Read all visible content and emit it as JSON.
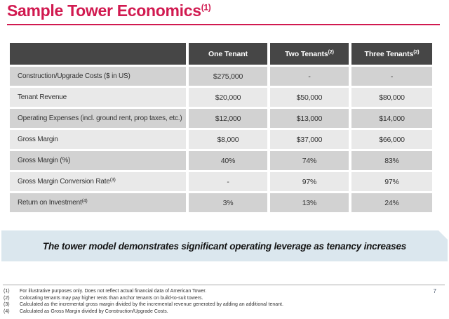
{
  "title": {
    "text": "Sample Tower Economics",
    "sup": "(1)"
  },
  "table": {
    "header": {
      "col0": "",
      "columns": [
        {
          "label": "One Tenant",
          "sup": ""
        },
        {
          "label": "Two Tenants",
          "sup": "(2)"
        },
        {
          "label": "Three Tenants",
          "sup": "(2)"
        }
      ]
    },
    "rows": [
      {
        "label": "Construction/Upgrade Costs ($ in US)",
        "sup": "",
        "values": [
          "$275,000",
          "-",
          "-"
        ]
      },
      {
        "label": "Tenant Revenue",
        "sup": "",
        "values": [
          "$20,000",
          "$50,000",
          "$80,000"
        ]
      },
      {
        "label": "Operating Expenses (incl. ground rent, prop taxes, etc.)",
        "sup": "",
        "values": [
          "$12,000",
          "$13,000",
          "$14,000"
        ]
      },
      {
        "label": "Gross Margin",
        "sup": "",
        "values": [
          "$8,000",
          "$37,000",
          "$66,000"
        ]
      },
      {
        "label": "Gross Margin (%)",
        "sup": "",
        "values": [
          "40%",
          "74%",
          "83%"
        ]
      },
      {
        "label": "Gross Margin Conversion Rate",
        "sup": "(3)",
        "values": [
          "-",
          "97%",
          "97%"
        ]
      },
      {
        "label": "Return on Investment",
        "sup": "(4)",
        "values": [
          "3%",
          "13%",
          "24%"
        ]
      }
    ]
  },
  "banner": {
    "text": "The tower model demonstrates significant operating leverage as tenancy increases"
  },
  "footnotes": [
    {
      "num": "(1)",
      "text": "For illustrative purposes only. Does not reflect actual financial data of American Tower."
    },
    {
      "num": "(2)",
      "text": "Colocating tenants may pay higher rents than anchor tenants on build-to-suit towers."
    },
    {
      "num": "(3)",
      "text": "Calculated as the incremental gross margin divided by the incremental revenue generated by adding an additional tenant."
    },
    {
      "num": "(4)",
      "text": "Calculated as Gross Margin divided by Construction/Upgrade Costs."
    }
  ],
  "page_number": "7",
  "colors": {
    "accent": "#d11a50",
    "header_bg": "#464646",
    "row_dark": "#d2d2d2",
    "row_light": "#e9e9e9",
    "banner_bg": "#dbe7ee"
  }
}
